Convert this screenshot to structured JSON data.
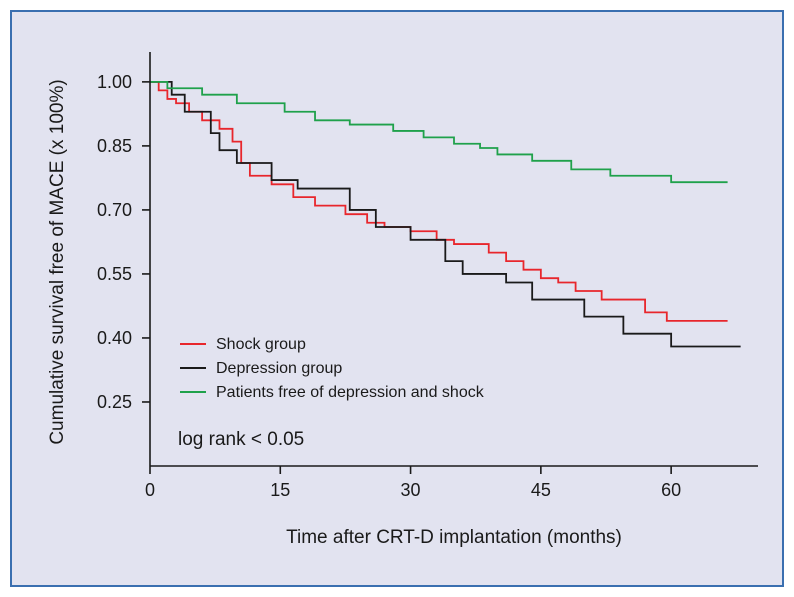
{
  "chart_data": {
    "type": "line",
    "step": true,
    "title": "",
    "xlabel": "Time after CRT-D implantation (months)",
    "ylabel": "Cumulative survival free of MACE (x 100%)",
    "xlim": [
      0,
      70
    ],
    "ylim": [
      0.1,
      1.07
    ],
    "xticks": [
      0,
      15,
      30,
      45,
      60
    ],
    "xtick_labels": [
      "0",
      "15",
      "30",
      "45",
      "60"
    ],
    "yticks": [
      0.25,
      0.4,
      0.55,
      0.7,
      0.85,
      1.0
    ],
    "ytick_labels": [
      "0.25",
      "0.40",
      "0.55",
      "0.70",
      "0.85",
      "1.00"
    ],
    "annotation": "log rank < 0.05",
    "legend_position": "bottom-left",
    "series": [
      {
        "name": "Shock group",
        "color": "#e8262c",
        "x": [
          0,
          1,
          2,
          3,
          4.5,
          6,
          8,
          9.5,
          10.5,
          11.5,
          14,
          16.5,
          19,
          22.5,
          25,
          27,
          30,
          33,
          35,
          39,
          41,
          43,
          45,
          47,
          49,
          52,
          57,
          59.5,
          66.5
        ],
        "y": [
          1.0,
          0.98,
          0.96,
          0.95,
          0.93,
          0.91,
          0.89,
          0.86,
          0.81,
          0.78,
          0.76,
          0.73,
          0.71,
          0.69,
          0.67,
          0.66,
          0.65,
          0.63,
          0.62,
          0.6,
          0.58,
          0.56,
          0.54,
          0.53,
          0.51,
          0.49,
          0.46,
          0.44,
          0.44
        ]
      },
      {
        "name": "Depression group",
        "color": "#1a1a1a",
        "x": [
          0,
          2.5,
          4,
          7,
          8,
          10,
          14,
          17,
          23,
          26,
          30,
          34,
          36,
          41,
          44,
          50,
          54.5,
          60,
          68
        ],
        "y": [
          1.0,
          0.97,
          0.93,
          0.88,
          0.84,
          0.81,
          0.77,
          0.75,
          0.7,
          0.66,
          0.63,
          0.58,
          0.55,
          0.53,
          0.49,
          0.45,
          0.41,
          0.38,
          0.38
        ]
      },
      {
        "name": "Patients free of depression and shock",
        "color": "#1fa14b",
        "x": [
          0,
          2,
          6,
          10,
          15.5,
          19,
          23,
          28,
          31.5,
          35,
          38,
          40,
          44,
          48.5,
          53,
          60,
          66.5
        ],
        "y": [
          1.0,
          0.985,
          0.97,
          0.95,
          0.93,
          0.91,
          0.9,
          0.885,
          0.87,
          0.855,
          0.845,
          0.83,
          0.815,
          0.795,
          0.78,
          0.765,
          0.765
        ]
      }
    ]
  }
}
